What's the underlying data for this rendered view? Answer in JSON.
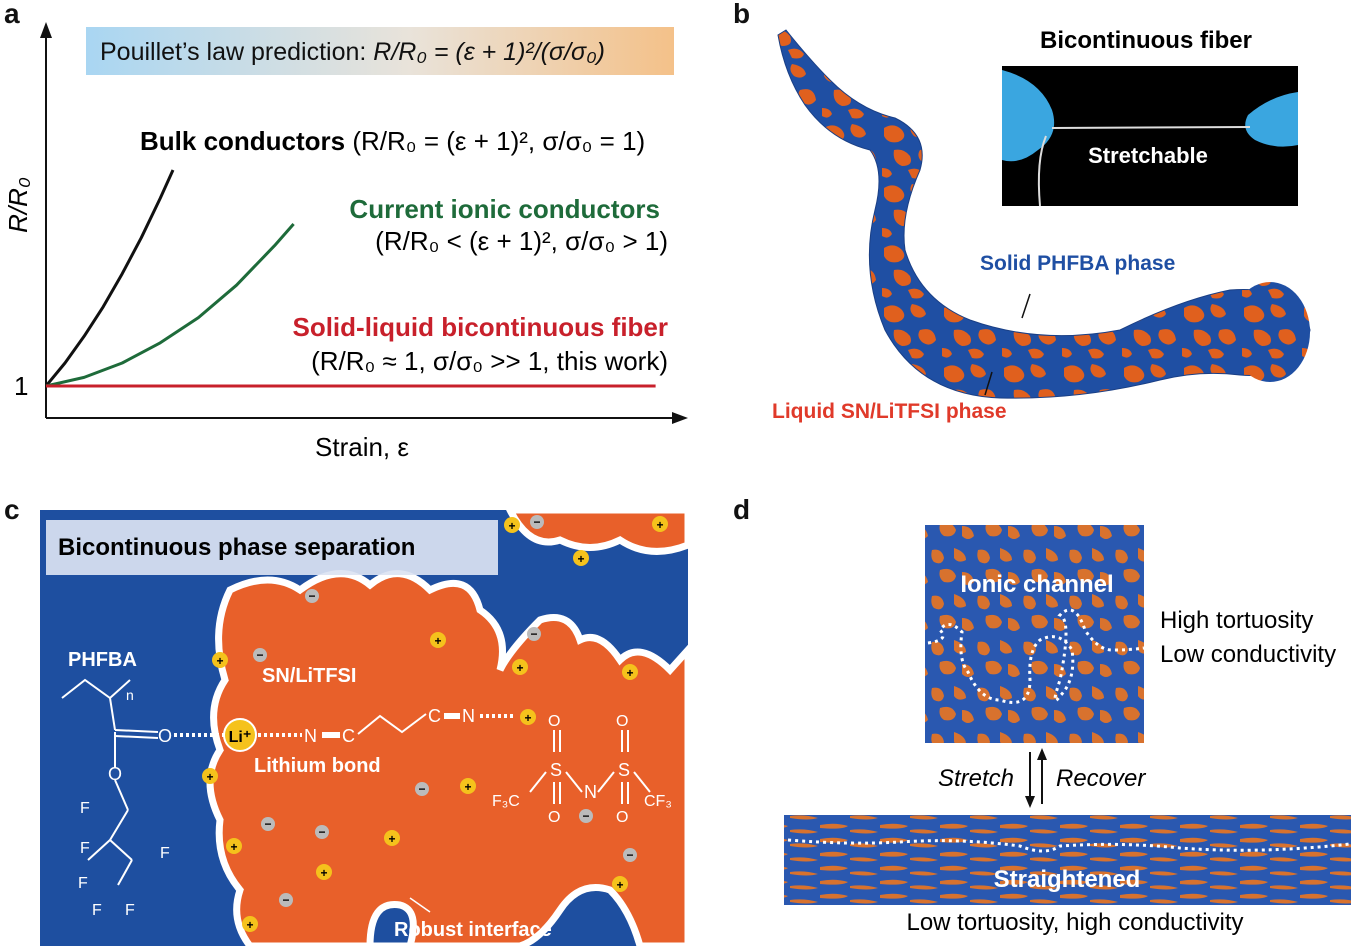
{
  "panel_a": {
    "letter": "a",
    "banner": {
      "text": "Pouillet’s law prediction: ",
      "formula": "R/R₀ = (ε + 1)²/(σ/σ₀)"
    },
    "ylabel": "R/R₀",
    "xlabel": "Strain, ε",
    "y_tick": "1",
    "bulk": {
      "name": "Bulk conductors",
      "cond": "(R/R₀ = (ε + 1)², σ/σ₀ = 1)",
      "color": "#111111"
    },
    "ionic": {
      "name": "Current ionic conductors",
      "cond": "(R/R₀ < (ε + 1)², σ/σ₀ > 1)",
      "color": "#1e6b3a"
    },
    "fiber": {
      "name": "Solid-liquid bicontinuous fiber",
      "cond": "(R/R₀ ≈ 1, σ/σ₀ >> 1, this work)",
      "color": "#c8202b"
    }
  },
  "chart_data": {
    "type": "line",
    "xlabel": "Strain, ε",
    "ylabel": "R/R₀",
    "series": [
      {
        "name": "Bulk conductors",
        "x": [
          0,
          0.15,
          0.3,
          0.45,
          0.6,
          0.75,
          0.9,
          1.0
        ],
        "y": [
          1,
          1.32,
          1.69,
          2.1,
          2.56,
          3.06,
          3.61,
          4.0
        ]
      },
      {
        "name": "Current ionic conductors",
        "x": [
          0,
          0.3,
          0.6,
          0.9,
          1.2,
          1.5,
          1.8,
          1.95
        ],
        "y": [
          1,
          1.12,
          1.32,
          1.6,
          1.95,
          2.4,
          2.95,
          3.25
        ]
      },
      {
        "name": "Solid-liquid bicontinuous fiber",
        "x": [
          0,
          4.8
        ],
        "y": [
          1,
          1
        ]
      }
    ]
  },
  "panel_b": {
    "letter": "b",
    "inset_title": "Bicontinuous fiber",
    "inset_label": "Stretchable",
    "solid_label": "Solid PHFBA phase",
    "liquid_label": "Liquid SN/LiTFSI phase",
    "colors": {
      "blue": "#1f4fa3",
      "orange": "#e0601e"
    }
  },
  "panel_c": {
    "letter": "c",
    "title": "Bicontinuous phase separation",
    "phfba": "PHFBA",
    "snlitfsi": "SN/LiTFSI",
    "li": "Li⁺",
    "lithium_bond": "Lithium bond",
    "robust_interface": "Robust interface",
    "o_label": "O",
    "n_label": "N",
    "c_label": "C",
    "s_label": "S",
    "f_label": "F",
    "f3c_label": "F₃C",
    "cf3_label": "CF₃",
    "n_sub": "n",
    "plus": "+",
    "minus": "−"
  },
  "panel_d": {
    "letter": "d",
    "ionic_channel": "Ionic channel",
    "high_tort": "High tortuosity",
    "low_cond": "Low conductivity",
    "stretch": "Stretch",
    "recover": "Recover",
    "straightened": "Straightened",
    "bottom": "Low tortuosity, high conductivity"
  }
}
